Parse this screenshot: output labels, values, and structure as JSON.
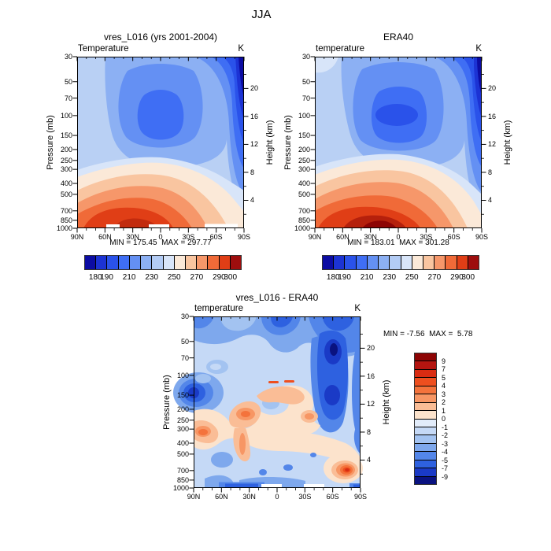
{
  "main_title": "JJA",
  "panels": [
    {
      "title": "vres_L016 (yrs 2001-2004)",
      "left_label": "Temperature",
      "units_label": "K",
      "minmax": "MIN = 175.45  MAX = 297.77"
    },
    {
      "title": "ERA40",
      "left_label": "temperature",
      "units_label": "K",
      "minmax": "MIN = 183.01  MAX = 301.28"
    },
    {
      "title": "vres_L016 - ERA40",
      "left_label": "temperature",
      "units_label": "K",
      "minmax": "MIN = -7.56  MAX =  5.78"
    }
  ],
  "axes": {
    "pressure_label": "Pressure (mb)",
    "height_label": "Height (km)",
    "pressure_ticks": {
      "labels": [
        "30",
        "50",
        "70",
        "100",
        "150",
        "200",
        "250",
        "300",
        "400",
        "500",
        "700",
        "850",
        "1000"
      ],
      "fracs": [
        0,
        0.1457,
        0.2416,
        0.3434,
        0.459,
        0.541,
        0.6046,
        0.6566,
        0.7387,
        0.8023,
        0.8983,
        0.9537,
        1
      ]
    },
    "height_ticks": {
      "labels": [
        "20",
        "16",
        "12",
        "8",
        "4"
      ],
      "fracs": [
        0.1852,
        0.3482,
        0.5111,
        0.6741,
        0.8371
      ],
      "minor_fracs": [
        0.1037,
        0.2667,
        0.4296,
        0.5926,
        0.7556,
        0.9185
      ]
    },
    "lat_ticks": {
      "labels": [
        "90N",
        "60N",
        "30N",
        "0",
        "30S",
        "60S",
        "90S"
      ],
      "fracs": [
        0,
        0.1667,
        0.3333,
        0.5,
        0.6667,
        0.8333,
        1
      ]
    }
  },
  "colorbars": {
    "temperature": {
      "labels": [
        "180",
        "190",
        "210",
        "230",
        "250",
        "270",
        "290",
        "300"
      ],
      "fracs": [
        0.0714,
        0.1429,
        0.2857,
        0.4286,
        0.5714,
        0.7143,
        0.8571,
        0.9286
      ],
      "colors": [
        "#0c0ca3",
        "#1c33d4",
        "#2a52ea",
        "#3f6ef4",
        "#6490f3",
        "#8cb0f3",
        "#b3ccf5",
        "#d8e5f9",
        "#fbe9d8",
        "#f9c5a0",
        "#f6976a",
        "#f06a38",
        "#e03e16",
        "#9e0e0e"
      ]
    },
    "difference": {
      "labels": [
        "9",
        "7",
        "5",
        "4",
        "3",
        "2",
        "1",
        "0",
        "-1",
        "-2",
        "-3",
        "-4",
        "-5",
        "-7",
        "-9"
      ],
      "colors": [
        "#8d0404",
        "#b41510",
        "#d92c12",
        "#ee4f1f",
        "#f4733c",
        "#f79664",
        "#fabd96",
        "#fce3cc",
        "#e2ecfa",
        "#c5d9f6",
        "#a3c3f1",
        "#7ea8ed",
        "#5386e9",
        "#2e61e0",
        "#1a3ac6",
        "#0a1280"
      ]
    }
  },
  "chart_data": [
    {
      "type": "heatmap",
      "subtype": "filled-contour latitude-pressure cross section",
      "title": "vres_L016 (yrs 2001-2004)",
      "variable": "Temperature",
      "units": "K",
      "x_ticks": [
        "90N",
        "60N",
        "30N",
        "0",
        "30S",
        "60S",
        "90S"
      ],
      "y_left_label": "Pressure (mb)",
      "y_left_ticks": [
        30,
        50,
        70,
        100,
        150,
        200,
        250,
        300,
        400,
        500,
        700,
        850,
        1000
      ],
      "y_right_label": "Height (km)",
      "y_right_ticks": [
        20,
        16,
        12,
        8,
        4
      ],
      "contour_levels": [
        180,
        190,
        200,
        210,
        220,
        230,
        240,
        250,
        260,
        270,
        280,
        290,
        300
      ],
      "min": 175.45,
      "max": 297.77,
      "features": "Cold minimum (~190 K) centered near 100 mb over the equator; coldest air (<190 K) in upper south-polar corner; warm maximum (~295-300 K) near the surface around 30N; small white missing-data gaps along the 1000 mb surface"
    },
    {
      "type": "heatmap",
      "subtype": "filled-contour latitude-pressure cross section",
      "title": "ERA40",
      "variable": "temperature",
      "units": "K",
      "x_ticks": [
        "90N",
        "60N",
        "30N",
        "0",
        "30S",
        "60S",
        "90S"
      ],
      "y_left_label": "Pressure (mb)",
      "y_left_ticks": [
        30,
        50,
        70,
        100,
        150,
        200,
        250,
        300,
        400,
        500,
        700,
        850,
        1000
      ],
      "y_right_label": "Height (km)",
      "y_right_ticks": [
        20,
        16,
        12,
        8,
        4
      ],
      "contour_levels": [
        180,
        190,
        200,
        210,
        220,
        230,
        240,
        250,
        260,
        270,
        280,
        290,
        300
      ],
      "min": 183.01,
      "max": 301.28,
      "features": "Same structure as model panel; tropical tropopause cold core near 100 mb; dark-red surface maximum (>300 K) centered between 30N and the equator; cold upper south-polar corner"
    },
    {
      "type": "heatmap",
      "subtype": "filled-contour difference (model minus reanalysis)",
      "title": "vres_L016 - ERA40",
      "variable": "temperature",
      "units": "K",
      "x_ticks": [
        "90N",
        "60N",
        "30N",
        "0",
        "30S",
        "60S",
        "90S"
      ],
      "y_left_label": "Pressure (mb)",
      "y_left_ticks": [
        30,
        50,
        70,
        100,
        150,
        200,
        250,
        300,
        400,
        500,
        700,
        850,
        1000
      ],
      "y_right_label": "Height (km)",
      "y_right_ticks": [
        20,
        16,
        12,
        8,
        4
      ],
      "contour_levels": [
        -9,
        -7,
        -5,
        -4,
        -3,
        -2,
        -1,
        0,
        1,
        2,
        3,
        4,
        5,
        7,
        9
      ],
      "min": -7.56,
      "max": 5.78,
      "features": "Cold bias (-3 to -7 K) across the 30-70 mb layer and in a deep column near 60S; -5 to -7 K blob at 90N near 200 mb; warm bias band (+1 to +4 K) sloping from the Arctic mid-troposphere (300-500 mb) up to the tropical 100 mb level; +3 to +6 K spot near 80S at 700-850 mb; weak negative dashes along the 1000 mb surface"
    }
  ]
}
